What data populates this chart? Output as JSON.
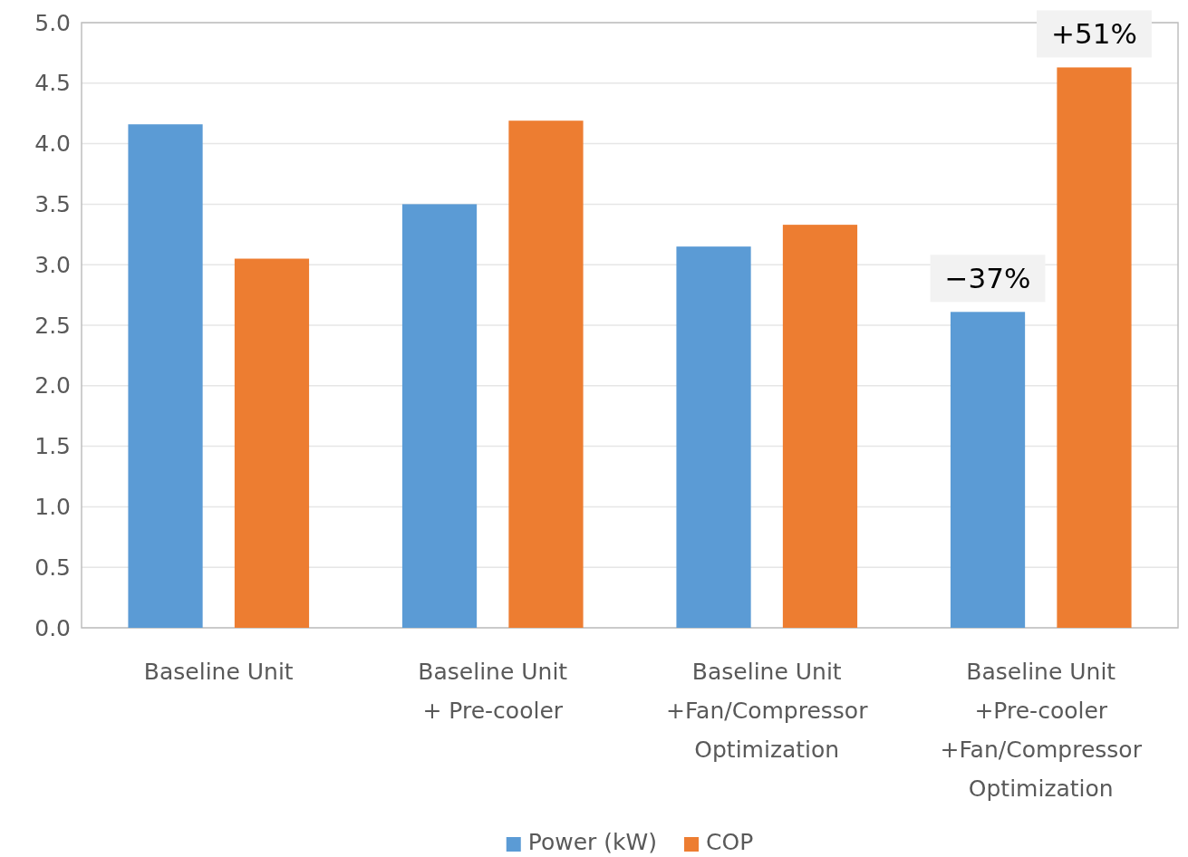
{
  "chart_data": {
    "type": "bar",
    "categories": [
      "Baseline Unit",
      "Baseline Unit\n+ Pre-cooler",
      "Baseline Unit\n+Fan/Compressor\nOptimization",
      "Baseline Unit\n+Pre-cooler\n+Fan/Compressor\nOptimization"
    ],
    "series": [
      {
        "name": "Power (kW)",
        "color": "#5b9bd5",
        "values": [
          4.16,
          3.5,
          3.15,
          2.61
        ]
      },
      {
        "name": "COP",
        "color": "#ed7d31",
        "values": [
          3.05,
          4.19,
          3.33,
          4.63
        ]
      }
    ],
    "ylim": [
      0,
      5
    ],
    "yticks": [
      {
        "value": 0,
        "label": "0.0"
      },
      {
        "value": 0.5,
        "label": "0.5"
      },
      {
        "value": 1,
        "label": "1.0"
      },
      {
        "value": 1.5,
        "label": "1.5"
      },
      {
        "value": 2,
        "label": "2.0"
      },
      {
        "value": 2.5,
        "label": "2.5"
      },
      {
        "value": 3,
        "label": "3.0"
      },
      {
        "value": 3.5,
        "label": "3.5"
      },
      {
        "value": 4,
        "label": "4.0"
      },
      {
        "value": 4.5,
        "label": "4.5"
      },
      {
        "value": 5,
        "label": "5.0"
      }
    ],
    "grid": "y",
    "legend": "bottom",
    "annotations": [
      "−37%",
      "+51%"
    ]
  }
}
